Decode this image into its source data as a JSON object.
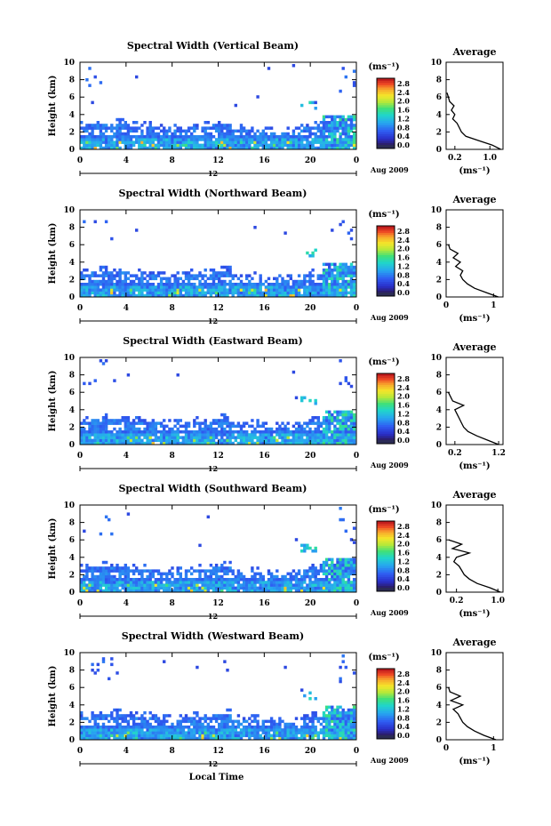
{
  "figure": {
    "date_label": "Aug 2009",
    "bottom_label": "12",
    "xlabel": "Local Time",
    "ylabel": "Height (km)",
    "cb_unit": "(ms⁻¹)",
    "avg_title": "Average",
    "avg_xlabel": "(ms⁻¹)"
  },
  "chart_data": [
    {
      "type": "heatmap",
      "title": "Spectral Width (Vertical Beam)",
      "xticks": [
        "0",
        "4",
        "8",
        "12",
        "16",
        "20",
        "0"
      ],
      "yticks": [
        "0",
        "2",
        "4",
        "6",
        "8",
        "10"
      ],
      "xlim": [
        0,
        24
      ],
      "ylim": [
        0,
        10
      ],
      "colorbar": {
        "ticks": [
          "0.0",
          "0.4",
          "0.8",
          "1.2",
          "1.6",
          "2.0",
          "2.4",
          "2.8"
        ],
        "range": [
          0,
          3.0
        ]
      },
      "avg_profile": {
        "xticks": [
          "0.2",
          "1.0"
        ],
        "xlim": [
          0,
          1.3
        ],
        "heights": [
          0,
          0.5,
          1,
          1.5,
          2,
          2.5,
          3,
          3.5,
          4,
          4.5,
          5,
          5.5,
          6,
          6.5
        ],
        "values": [
          1.25,
          1.05,
          0.75,
          0.45,
          0.35,
          0.3,
          0.25,
          0.15,
          0.2,
          0.12,
          0.18,
          0.08,
          0.05,
          0.02
        ]
      }
    },
    {
      "type": "heatmap",
      "title": "Spectral Width (Northward Beam)",
      "xticks": [
        "0",
        "4",
        "8",
        "12",
        "16",
        "20",
        "0"
      ],
      "yticks": [
        "0",
        "2",
        "4",
        "6",
        "8",
        "10"
      ],
      "xlim": [
        0,
        24
      ],
      "ylim": [
        0,
        10
      ],
      "colorbar": {
        "ticks": [
          "0.0",
          "0.4",
          "0.8",
          "1.2",
          "1.6",
          "2.0",
          "2.4",
          "2.8"
        ],
        "range": [
          0,
          3.0
        ]
      },
      "avg_profile": {
        "xticks": [
          "0",
          "1"
        ],
        "xlim": [
          0,
          1.2
        ],
        "heights": [
          0,
          0.5,
          1,
          1.5,
          2,
          2.5,
          3,
          3.5,
          4,
          4.5,
          5,
          5.5,
          6
        ],
        "values": [
          1.1,
          0.85,
          0.6,
          0.45,
          0.35,
          0.3,
          0.35,
          0.2,
          0.3,
          0.15,
          0.25,
          0.08,
          0.05
        ]
      }
    },
    {
      "type": "heatmap",
      "title": "Spectral Width (Eastward Beam)",
      "xticks": [
        "0",
        "4",
        "8",
        "12",
        "16",
        "20",
        "0"
      ],
      "yticks": [
        "0",
        "2",
        "4",
        "6",
        "8",
        "10"
      ],
      "xlim": [
        0,
        24
      ],
      "ylim": [
        0,
        10
      ],
      "colorbar": {
        "ticks": [
          "0.0",
          "0.4",
          "0.8",
          "1.2",
          "1.6",
          "2.0",
          "2.4",
          "2.8"
        ],
        "range": [
          0,
          3.0
        ]
      },
      "avg_profile": {
        "xticks": [
          "0.2",
          "1.2"
        ],
        "xlim": [
          0,
          1.3
        ],
        "heights": [
          0,
          0.5,
          1,
          1.5,
          2,
          2.5,
          3,
          3.5,
          4,
          4.5,
          5,
          5.5,
          6
        ],
        "values": [
          1.2,
          0.95,
          0.7,
          0.5,
          0.4,
          0.35,
          0.3,
          0.25,
          0.2,
          0.4,
          0.15,
          0.1,
          0.05
        ]
      }
    },
    {
      "type": "heatmap",
      "title": "Spectral Width (Southward Beam)",
      "xticks": [
        "0",
        "4",
        "8",
        "12",
        "16",
        "20",
        "0"
      ],
      "yticks": [
        "0",
        "2",
        "4",
        "6",
        "8",
        "10"
      ],
      "xlim": [
        0,
        24
      ],
      "ylim": [
        0,
        10
      ],
      "colorbar": {
        "ticks": [
          "0.0",
          "0.4",
          "0.8",
          "1.2",
          "1.6",
          "2.0",
          "2.4",
          "2.8"
        ],
        "range": [
          0,
          3.0
        ]
      },
      "avg_profile": {
        "xticks": [
          "0.2",
          "1.0"
        ],
        "xlim": [
          0,
          1.1
        ],
        "heights": [
          0,
          0.5,
          1,
          1.5,
          2,
          2.5,
          3,
          3.5,
          4,
          4.5,
          5,
          5.5,
          6
        ],
        "values": [
          1.05,
          0.85,
          0.6,
          0.45,
          0.35,
          0.3,
          0.25,
          0.15,
          0.2,
          0.45,
          0.12,
          0.3,
          0.05
        ]
      }
    },
    {
      "type": "heatmap",
      "title": "Spectral Width (Westward Beam)",
      "xticks": [
        "0",
        "4",
        "8",
        "12",
        "16",
        "20",
        "0"
      ],
      "yticks": [
        "0",
        "2",
        "4",
        "6",
        "8",
        "10"
      ],
      "xlim": [
        0,
        24
      ],
      "ylim": [
        0,
        10
      ],
      "colorbar": {
        "ticks": [
          "0.0",
          "0.4",
          "0.8",
          "1.2",
          "1.6",
          "2.0",
          "2.4",
          "2.8"
        ],
        "range": [
          0,
          3.0
        ]
      },
      "avg_profile": {
        "xticks": [
          "0",
          "1"
        ],
        "xlim": [
          0,
          1.2
        ],
        "heights": [
          0,
          0.5,
          1,
          1.5,
          2,
          2.5,
          3,
          3.5,
          4,
          4.5,
          5,
          5.5,
          6
        ],
        "values": [
          1.05,
          0.8,
          0.6,
          0.45,
          0.35,
          0.3,
          0.25,
          0.15,
          0.35,
          0.1,
          0.3,
          0.08,
          0.05
        ]
      }
    }
  ]
}
